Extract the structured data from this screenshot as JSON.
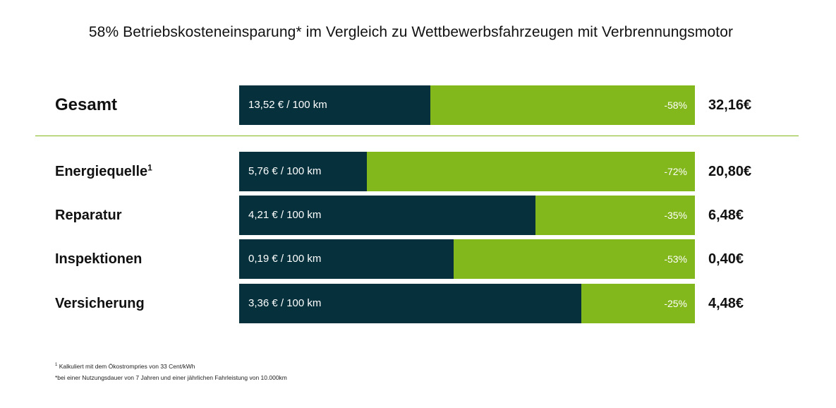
{
  "title": "58% Betriebskosteneinsparung* im Vergleich zu Wettbewerbsfahrzeugen mit Verbrennungsmotor",
  "colors": {
    "dark_bar": "#05303c",
    "savings_bar": "#82b81b",
    "divider": "#82b81b"
  },
  "chart_data": {
    "type": "bar",
    "orientation": "horizontal-stacked",
    "categories": [
      "Gesamt",
      "Energiequelle",
      "Reparatur",
      "Inspektionen",
      "Versicherung"
    ],
    "rows": [
      {
        "label": "Gesamt",
        "value_label": "13,52 € / 100 km",
        "saving_label": "-58%",
        "saving_pct": 58,
        "competitor_label": "32,16€"
      },
      {
        "label": "Energiequelle",
        "footnote_mark": "1",
        "value_label": "5,76 € / 100 km",
        "saving_label": "-72%",
        "saving_pct": 72,
        "competitor_label": "20,80€"
      },
      {
        "label": "Reparatur",
        "value_label": "4,21 € / 100 km",
        "saving_label": "-35%",
        "saving_pct": 35,
        "competitor_label": "6,48€"
      },
      {
        "label": "Inspektionen",
        "value_label": "0,19 € / 100 km",
        "saving_label": "-53%",
        "saving_pct": 53,
        "competitor_label": "0,40€"
      },
      {
        "label": "Versicherung",
        "value_label": "3,36 € / 100 km",
        "saving_label": "-25%",
        "saving_pct": 25,
        "competitor_label": "4,48€"
      }
    ]
  },
  "footnotes": {
    "note1_mark": "1",
    "note1": "Kalkuliert mit dem Ökostrompries von 33 Cent/kWh",
    "note2": "*bei einer Nutzungsdauer von 7 Jahren und einer jährlichen Fahrleistung von 10.000km"
  }
}
